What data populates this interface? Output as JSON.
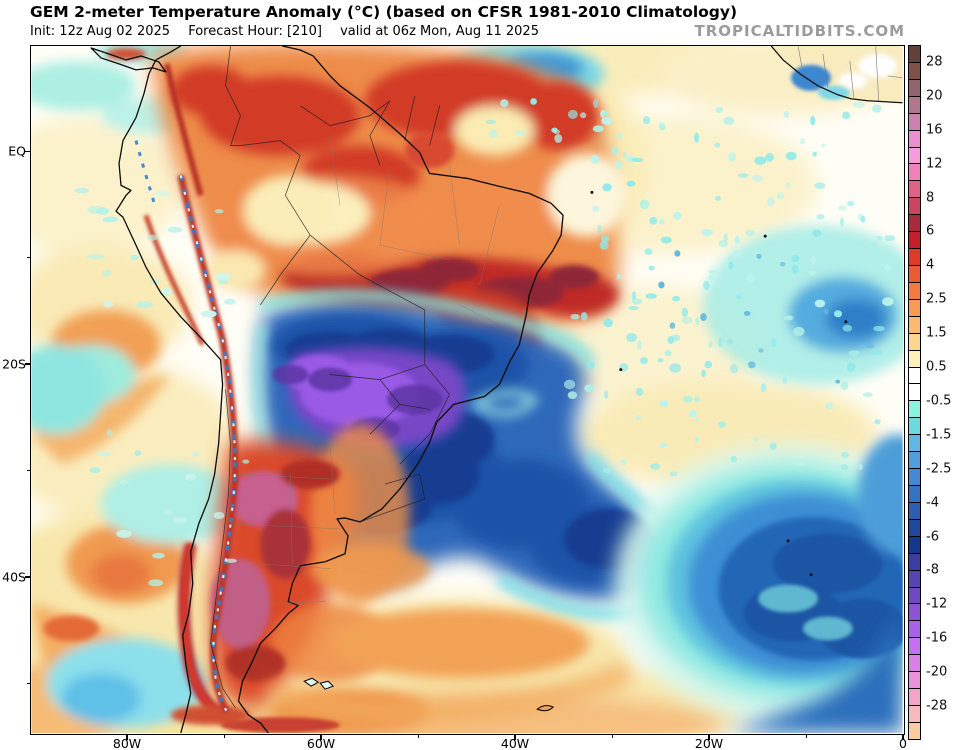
{
  "header": {
    "title": "GEM 2-meter Temperature Anomaly (°C) (based on CFSR 1981-2010 Climatology)",
    "init": "Init: 12z Aug 02 2025",
    "forecast_hour": "Forecast Hour: [210]",
    "valid": "valid at 06z Mon, Aug 11 2025",
    "watermark": "TROPICALTIDBITS.COM"
  },
  "axes": {
    "lat_labels": [
      "EQ",
      "20S",
      "40S"
    ],
    "lon_labels": [
      "80W",
      "60W",
      "40W",
      "20W",
      "0"
    ]
  },
  "colorbar": {
    "tick_labels": [
      "28",
      "20",
      "16",
      "12",
      "8",
      "6",
      "4",
      "2.5",
      "1.5",
      "0.5",
      "-0.5",
      "-1.5",
      "-2.5",
      "-4",
      "-6",
      "-8",
      "-12",
      "-16",
      "-20",
      "-28"
    ],
    "band_colors": [
      "#63413A",
      "#7D5349",
      "#916471",
      "#B0778F",
      "#C983AE",
      "#E891CE",
      "#F79BDC",
      "#EF82B8",
      "#E06189",
      "#CB4460",
      "#A82B3C",
      "#C41F2B",
      "#DC3B27",
      "#EA5C33",
      "#F17B41",
      "#F79C55",
      "#FABA70",
      "#FCD68C",
      "#FDF0B8",
      "#FFFFFF",
      "#FFFFFF",
      "#8CF2DE",
      "#6CD9DC",
      "#5FB8E4",
      "#4F9FDE",
      "#4489D4",
      "#3672C2",
      "#2C5FB2",
      "#1F479C",
      "#14388C",
      "#3C3DA0",
      "#5844B0",
      "#7049C0",
      "#8C53D2",
      "#A862E6",
      "#C470F0",
      "#DC7EEA",
      "#EC92DA",
      "#F2A4CA",
      "#F6BABC",
      "#FACCA2"
    ]
  },
  "palette": {
    "land_warm_core": "#C22B28",
    "land_cold_core": "#14388C",
    "extreme_cold_purple": "#8C53D2",
    "ocean_cold_pool": "#2166B6",
    "ocean_speckle_cyan": "#9FEAE2",
    "watermark_gray": "#9B9B9B",
    "frame_black": "#000000"
  }
}
